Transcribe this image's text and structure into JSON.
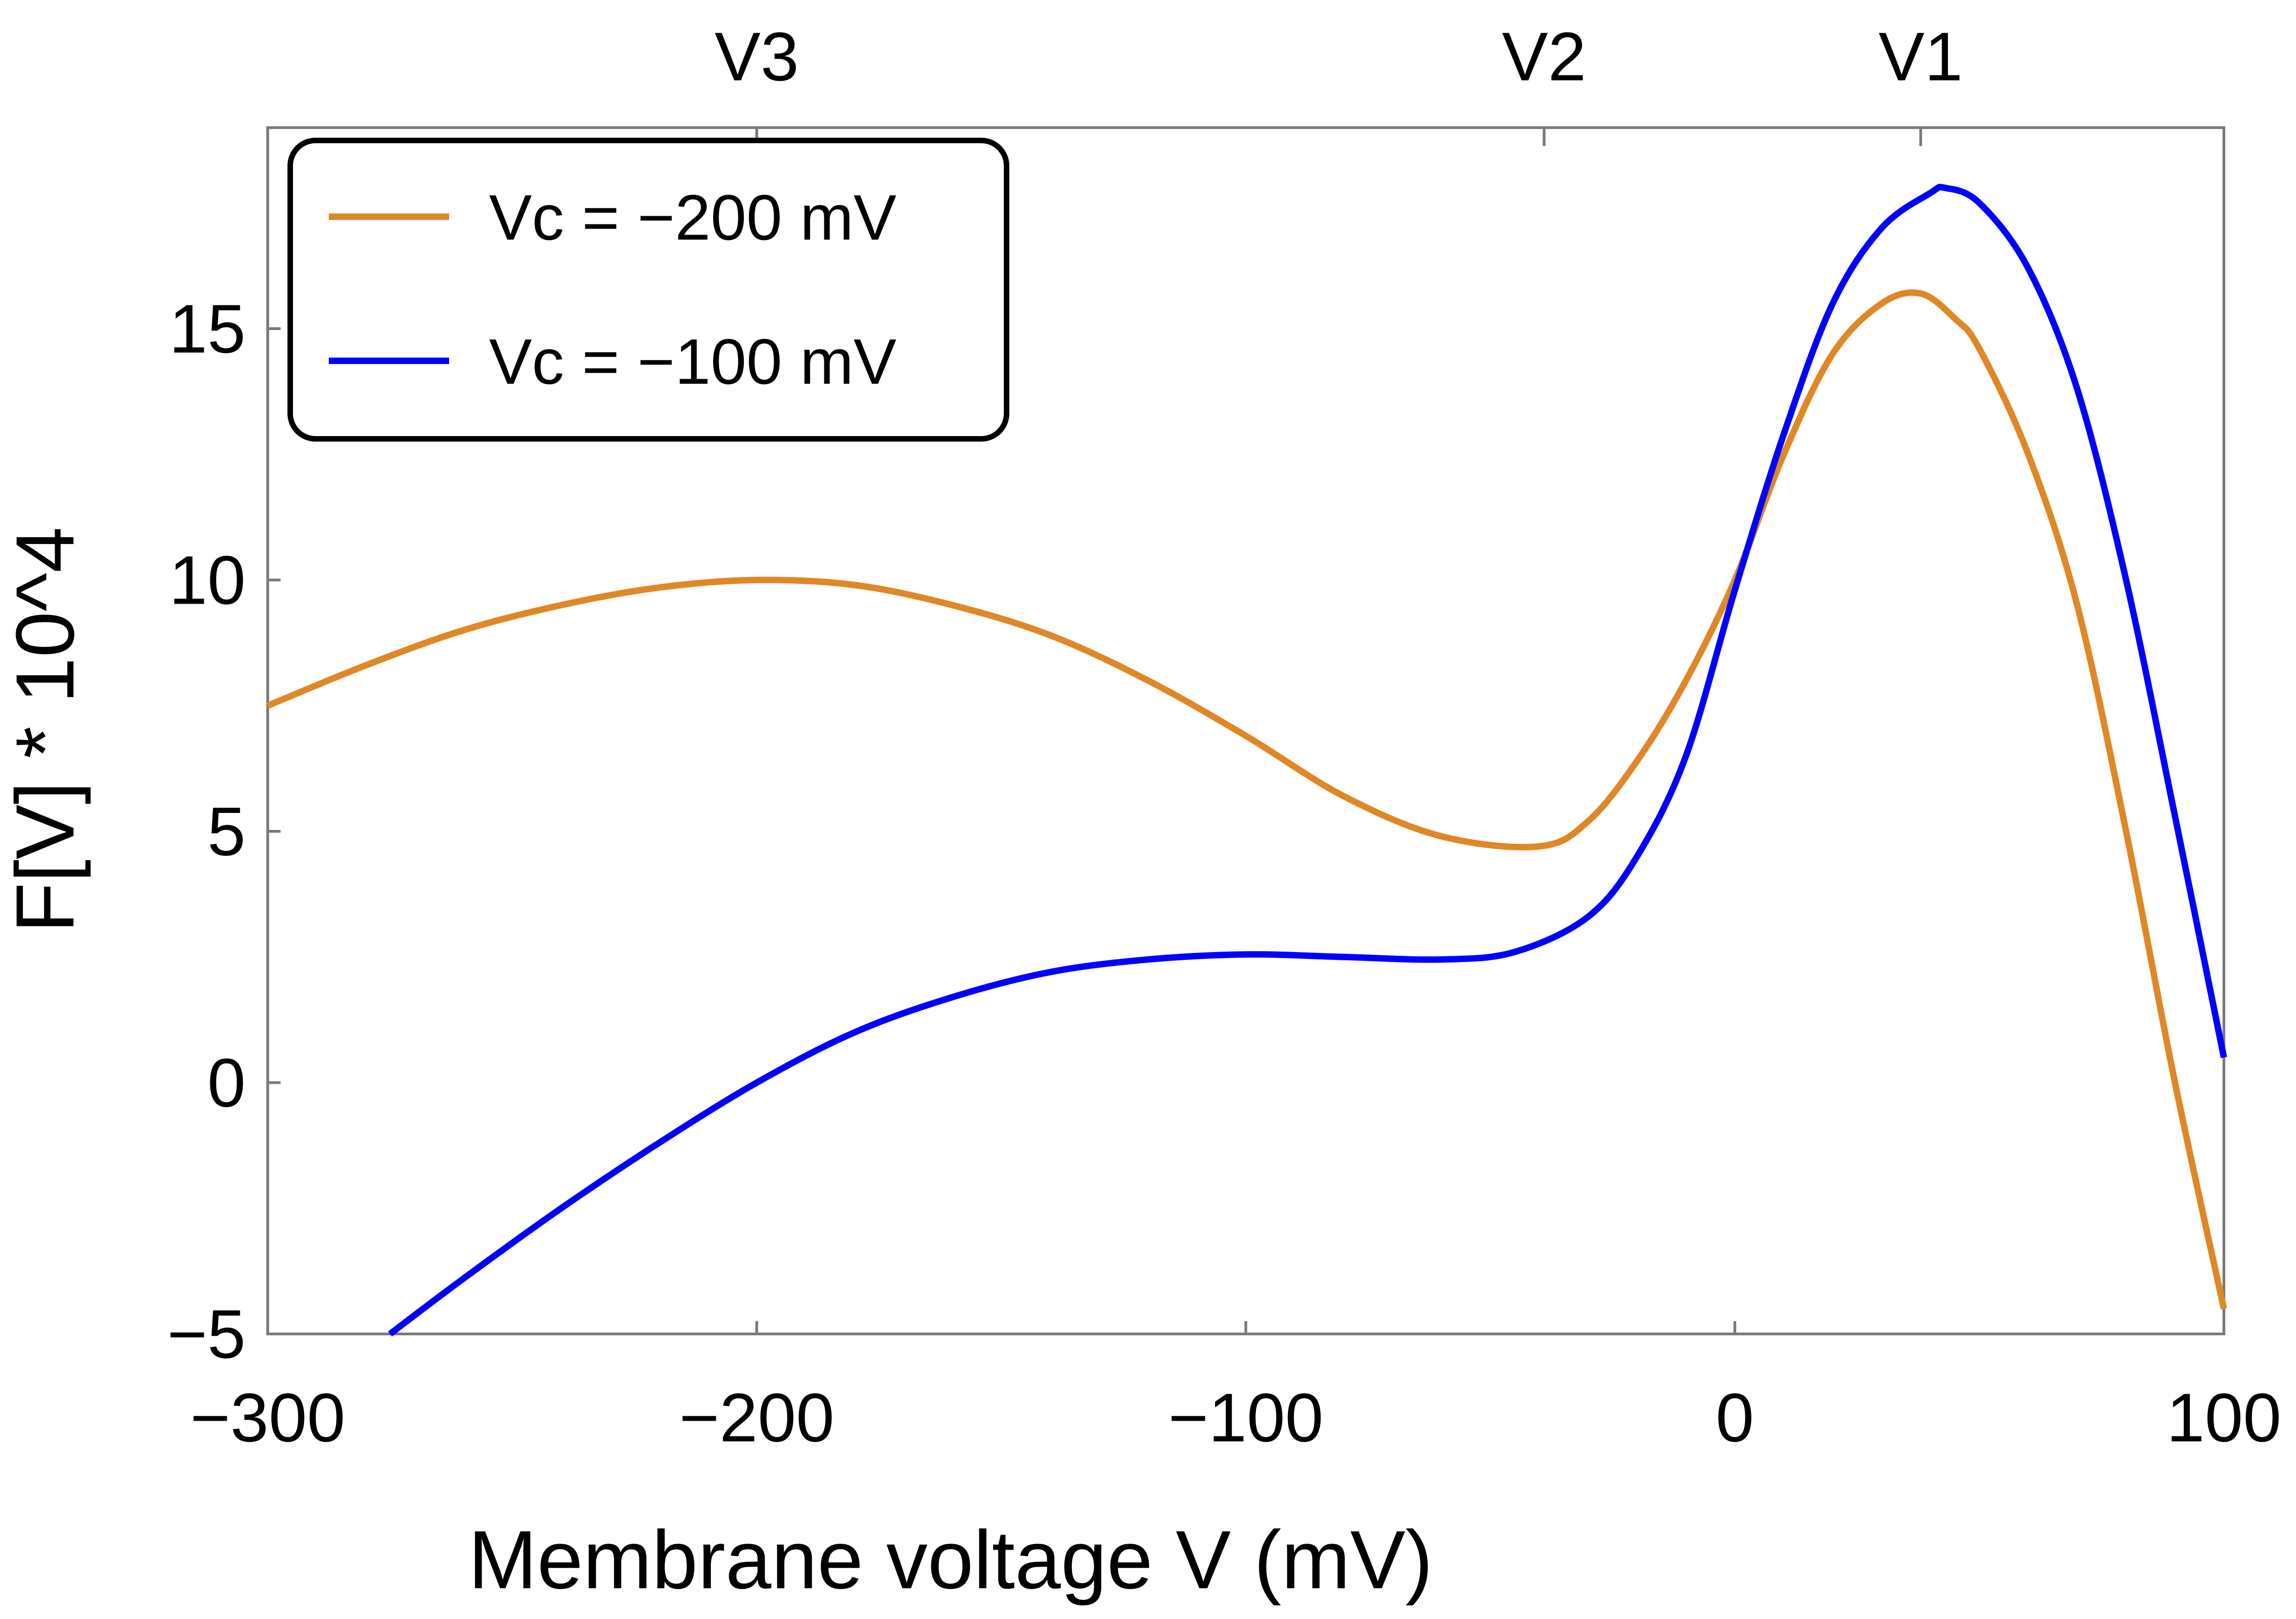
{
  "chart_data": {
    "type": "line",
    "title": "",
    "xlabel": "Membrane voltage V (mV)",
    "ylabel": "F[V] * 10^4",
    "xlim": [
      -300,
      100
    ],
    "ylim": [
      -5,
      19
    ],
    "xticks": [
      -300,
      -200,
      -100,
      0,
      100
    ],
    "xtick_labels": [
      "−300",
      "−200",
      "−100",
      "0",
      "100"
    ],
    "yticks": [
      -5,
      0,
      5,
      10,
      15
    ],
    "ytick_labels": [
      "−5",
      "0",
      "5",
      "10",
      "15"
    ],
    "top_ticks": [
      -200,
      -39,
      38
    ],
    "top_tick_labels": [
      "V3",
      "V2",
      "V1"
    ],
    "grid": false,
    "legend_position": "top-left",
    "series": [
      {
        "name": "Vc = −200 mV",
        "color": "#E08726",
        "x": [
          -300,
          -280,
          -260,
          -240,
          -220,
          -200,
          -180,
          -160,
          -140,
          -120,
          -100,
          -80,
          -60,
          -40,
          -30,
          -20,
          -10,
          0,
          10,
          20,
          30,
          38,
          45,
          50,
          60,
          70,
          80,
          90,
          100
        ],
        "y": [
          7.5,
          8.3,
          9.0,
          9.5,
          9.85,
          10.0,
          9.9,
          9.5,
          8.9,
          8.0,
          6.9,
          5.7,
          4.9,
          4.7,
          5.2,
          6.4,
          8.0,
          10.0,
          12.5,
          14.5,
          15.5,
          15.7,
          15.2,
          14.6,
          12.5,
          9.5,
          5.0,
          0.0,
          -4.5
        ]
      },
      {
        "name": "Vc = −100 mV",
        "color": "#0000FF",
        "x": [
          -275,
          -260,
          -240,
          -220,
          -200,
          -180,
          -160,
          -140,
          -120,
          -100,
          -80,
          -60,
          -45,
          -30,
          -20,
          -10,
          0,
          10,
          20,
          30,
          40,
          43,
          50,
          60,
          70,
          80,
          90,
          100
        ],
        "y": [
          -5.0,
          -3.9,
          -2.5,
          -1.2,
          0.0,
          1.0,
          1.7,
          2.2,
          2.45,
          2.55,
          2.5,
          2.45,
          2.6,
          3.3,
          4.5,
          6.5,
          9.8,
          12.9,
          15.5,
          17.0,
          17.7,
          17.8,
          17.5,
          16.2,
          13.8,
          10.0,
          5.3,
          0.5
        ]
      }
    ]
  }
}
